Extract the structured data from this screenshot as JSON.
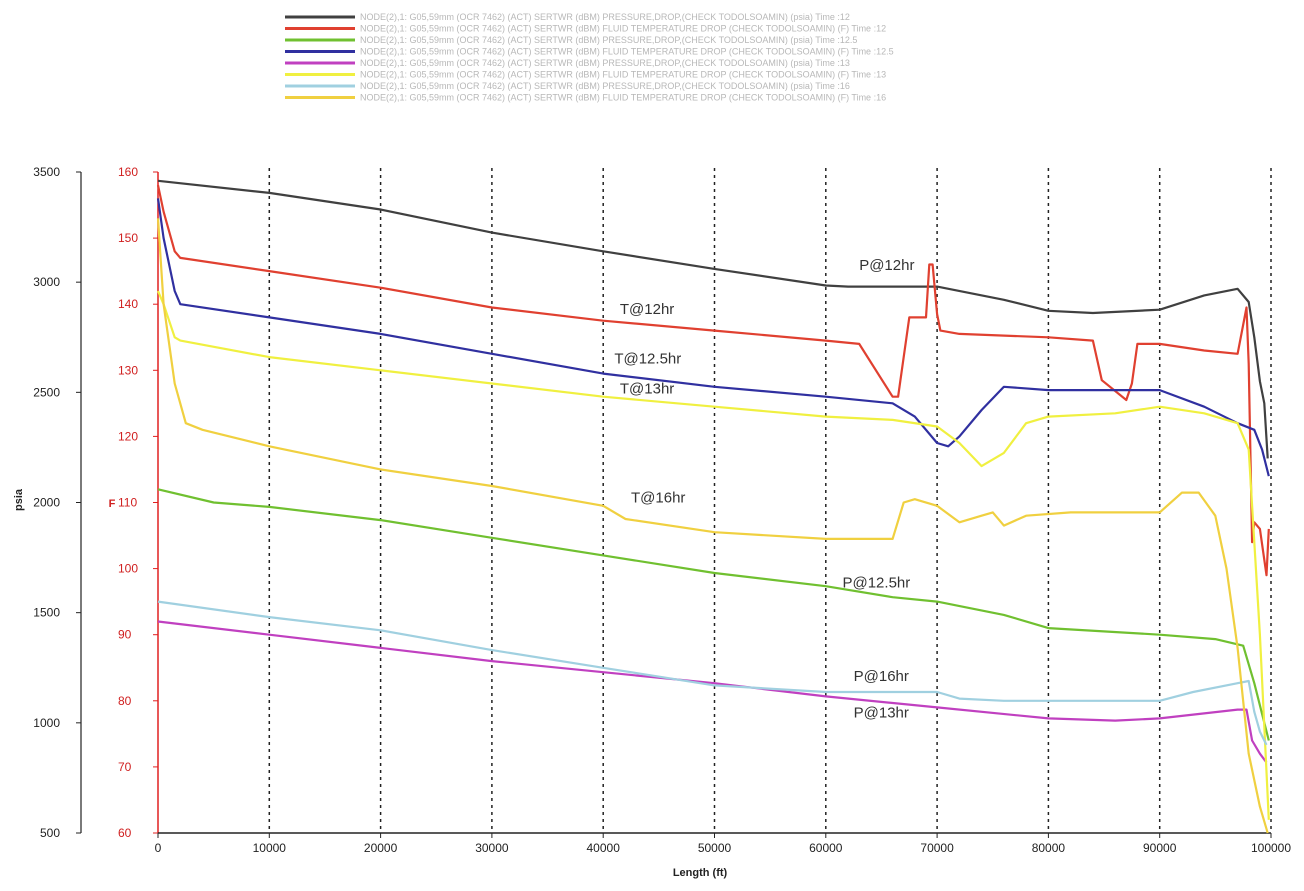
{
  "chart_data": {
    "type": "line",
    "xlabel": "Length (ft)",
    "ylabel_left": "psia",
    "ylabel_right": "F",
    "xlim": [
      0,
      100000
    ],
    "ylim_left": [
      500,
      3500
    ],
    "ylim_right": [
      60,
      160
    ],
    "x_ticks": [
      "0",
      "10000",
      "20000",
      "30000",
      "40000",
      "50000",
      "60000",
      "70000",
      "80000",
      "90000",
      "100000"
    ],
    "y_left_ticks": [
      "500",
      "1000",
      "1500",
      "2000",
      "2500",
      "3000",
      "3500"
    ],
    "y_right_ticks": [
      "60",
      "70",
      "80",
      "90",
      "100",
      "110",
      "120",
      "130",
      "140",
      "150",
      "160"
    ],
    "grid": "vertical dotted lines at x ticks",
    "legend_position": "top",
    "legend": [
      {
        "color": "#404040",
        "text": "NODE(2),1: G05,59mm (OCR 7462) (ACT) SERTWR (dBM) PRESSURE,DROP,(CHECK TODOLSOAMIN) (psia) Time :12"
      },
      {
        "color": "#e04030",
        "text": "NODE(2),1: G05,59mm (OCR 7462) (ACT) SERTWR (dBM) FLUID TEMPERATURE DROP (CHECK TODOLSOAMIN) (F) Time :12"
      },
      {
        "color": "#70c030",
        "text": "NODE(2),1: G05,59mm (OCR 7462) (ACT) SERTWR (dBM) PRESSURE,DROP,(CHECK TODOLSOAMIN) (psia) Time :12.5"
      },
      {
        "color": "#3030a0",
        "text": "NODE(2),1: G05,59mm (OCR 7462) (ACT) SERTWR (dBM) FLUID TEMPERATURE DROP (CHECK TODOLSOAMIN) (F) Time :12.5"
      },
      {
        "color": "#c040c0",
        "text": "NODE(2),1: G05,59mm (OCR 7462) (ACT) SERTWR (dBM) PRESSURE,DROP,(CHECK TODOLSOAMIN) (psia) Time :13"
      },
      {
        "color": "#f0f040",
        "text": "NODE(2),1: G05,59mm (OCR 7462) (ACT) SERTWR (dBM) FLUID TEMPERATURE DROP (CHECK TODOLSOAMIN) (F) Time :13"
      },
      {
        "color": "#a0d0e0",
        "text": "NODE(2),1: G05,59mm (OCR 7462) (ACT) SERTWR (dBM) PRESSURE,DROP,(CHECK TODOLSOAMIN) (psia) Time :16"
      },
      {
        "color": "#f0d040",
        "text": "NODE(2),1: G05,59mm (OCR 7462) (ACT) SERTWR (dBM) FLUID TEMPERATURE DROP (CHECK TODOLSOAMIN) (F) Time :16"
      }
    ],
    "annotations": [
      {
        "text": "P@12hr",
        "x": 63000,
        "y": 3055,
        "axis": "left"
      },
      {
        "text": "T@12hr",
        "x": 41500,
        "y": 138.5,
        "axis": "right"
      },
      {
        "text": "T@12.5hr",
        "x": 41000,
        "y": 131,
        "axis": "right"
      },
      {
        "text": "T@13hr",
        "x": 41500,
        "y": 126.5,
        "axis": "right"
      },
      {
        "text": "T@16hr",
        "x": 42500,
        "y": 110,
        "axis": "right"
      },
      {
        "text": "P@12.5hr",
        "x": 61500,
        "y": 1615,
        "axis": "left"
      },
      {
        "text": "P@16hr",
        "x": 62500,
        "y": 1190,
        "axis": "left"
      },
      {
        "text": "P@13hr",
        "x": 62500,
        "y": 1025,
        "axis": "left"
      }
    ],
    "series": [
      {
        "color": "#404040",
        "axis": "left",
        "x": [
          0,
          10000,
          20000,
          30000,
          40000,
          50000,
          60000,
          62000,
          70000,
          76000,
          80000,
          84000,
          90000,
          94000,
          97000,
          98000,
          98500,
          99000,
          99400,
          99700
        ],
        "y": [
          3460,
          3405,
          3330,
          3225,
          3140,
          3060,
          2985,
          2980,
          2980,
          2920,
          2870,
          2860,
          2875,
          2940,
          2970,
          2910,
          2750,
          2550,
          2450,
          2200
        ]
      },
      {
        "color": "#e04030",
        "axis": "right",
        "x": [
          0,
          500,
          1500,
          2000,
          10000,
          20000,
          30000,
          40000,
          50000,
          60000,
          63000,
          66000,
          66500,
          67500,
          69000,
          69300,
          69600,
          70000,
          70300,
          72000,
          80000,
          84000,
          84800,
          87000,
          87500,
          88000,
          90000,
          94000,
          97000,
          97800,
          98000,
          98300,
          98500,
          99000,
          99600,
          99800
        ],
        "y": [
          158,
          154,
          148,
          147,
          145,
          142.5,
          139.5,
          137.5,
          136,
          134.5,
          134,
          126,
          126,
          138,
          138,
          146,
          146,
          138.5,
          136,
          135.5,
          135,
          134.5,
          128.5,
          125.5,
          128,
          134,
          134,
          133,
          132.5,
          139.5,
          131,
          104,
          107,
          106,
          99,
          106
        ]
      },
      {
        "color": "#70c030",
        "axis": "left",
        "x": [
          0,
          5000,
          10000,
          20000,
          30000,
          40000,
          50000,
          60000,
          66000,
          70000,
          76000,
          80000,
          90000,
          95000,
          97500,
          98500,
          99300,
          99800
        ],
        "y": [
          2060,
          2000,
          1980,
          1920,
          1840,
          1760,
          1680,
          1620,
          1570,
          1550,
          1490,
          1430,
          1400,
          1380,
          1350,
          1180,
          1020,
          920
        ]
      },
      {
        "color": "#3030a0",
        "axis": "right",
        "x": [
          0,
          500,
          1500,
          2000,
          10000,
          20000,
          30000,
          40000,
          50000,
          60000,
          66000,
          68000,
          70000,
          71000,
          72000,
          74000,
          76000,
          80000,
          86000,
          90000,
          94000,
          97000,
          98500,
          99200,
          99800
        ],
        "y": [
          156,
          150,
          142,
          140,
          138,
          135.5,
          132.5,
          129.5,
          127.5,
          126,
          125,
          123,
          119,
          118.5,
          120,
          124,
          127.5,
          127,
          127,
          127,
          124.5,
          122,
          121,
          118,
          114
        ]
      },
      {
        "color": "#c040c0",
        "axis": "left",
        "x": [
          0,
          10000,
          20000,
          30000,
          40000,
          50000,
          60000,
          70000,
          80000,
          86000,
          90000,
          97000,
          97800,
          98300,
          99000,
          99600
        ],
        "y": [
          1460,
          1400,
          1340,
          1280,
          1230,
          1180,
          1120,
          1070,
          1020,
          1010,
          1020,
          1060,
          1060,
          920,
          860,
          820
        ]
      },
      {
        "color": "#f0f040",
        "axis": "right",
        "x": [
          0,
          500,
          1500,
          2000,
          10000,
          20000,
          30000,
          40000,
          50000,
          60000,
          66000,
          70000,
          72000,
          74000,
          76000,
          78000,
          80000,
          86000,
          90000,
          94000,
          97000,
          98000,
          99000,
          99800
        ],
        "y": [
          142,
          140,
          135,
          134.5,
          132,
          130,
          128,
          126,
          124.5,
          123,
          122.5,
          121.5,
          119,
          115.5,
          117.5,
          122,
          123,
          123.5,
          124.5,
          123.5,
          122,
          118,
          90,
          62
        ]
      },
      {
        "color": "#a0d0e0",
        "axis": "left",
        "x": [
          0,
          10000,
          20000,
          30000,
          40000,
          50000,
          60000,
          66000,
          70000,
          72000,
          76000,
          80000,
          86000,
          90000,
          93000,
          97000,
          98000,
          98500,
          99000,
          99600
        ],
        "y": [
          1550,
          1480,
          1420,
          1330,
          1250,
          1170,
          1140,
          1140,
          1140,
          1110,
          1100,
          1100,
          1100,
          1100,
          1140,
          1180,
          1190,
          1050,
          960,
          900
        ]
      },
      {
        "color": "#f0d040",
        "axis": "right",
        "x": [
          0,
          500,
          1500,
          2500,
          4000,
          10000,
          20000,
          30000,
          40000,
          42000,
          50000,
          60000,
          63000,
          66000,
          67000,
          68000,
          70000,
          72000,
          74000,
          75000,
          76000,
          78000,
          82000,
          86000,
          90000,
          92000,
          93500,
          95000,
          96000,
          97000,
          98000,
          99000,
          99700
        ],
        "y": [
          153,
          140,
          128,
          122,
          121,
          118.5,
          115,
          112.5,
          109.5,
          107.5,
          105.5,
          104.5,
          104.5,
          104.5,
          110,
          110.5,
          109.5,
          107,
          108,
          108.5,
          106.5,
          108,
          108.5,
          108.5,
          108.5,
          111.5,
          111.5,
          108,
          100,
          88,
          72,
          64,
          60
        ]
      }
    ]
  }
}
